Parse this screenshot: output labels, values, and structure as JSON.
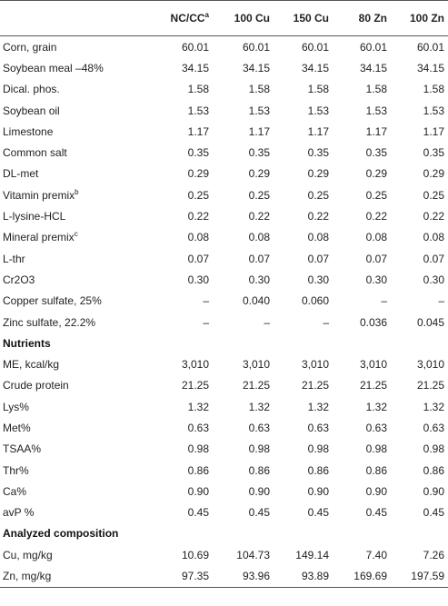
{
  "columns": [
    {
      "label": "NC/CC",
      "sup": "a"
    },
    {
      "label": "100 Cu",
      "sup": ""
    },
    {
      "label": "150 Cu",
      "sup": ""
    },
    {
      "label": "80 Zn",
      "sup": ""
    },
    {
      "label": "100 Zn",
      "sup": ""
    }
  ],
  "rows": [
    {
      "label": "Corn, grain",
      "values": [
        "60.01",
        "60.01",
        "60.01",
        "60.01",
        "60.01"
      ]
    },
    {
      "label": "Soybean meal –48%",
      "values": [
        "34.15",
        "34.15",
        "34.15",
        "34.15",
        "34.15"
      ]
    },
    {
      "label": "Dical. phos.",
      "values": [
        "1.58",
        "1.58",
        "1.58",
        "1.58",
        "1.58"
      ]
    },
    {
      "label": "Soybean oil",
      "values": [
        "1.53",
        "1.53",
        "1.53",
        "1.53",
        "1.53"
      ]
    },
    {
      "label": "Limestone",
      "values": [
        "1.17",
        "1.17",
        "1.17",
        "1.17",
        "1.17"
      ]
    },
    {
      "label": "Common salt",
      "values": [
        "0.35",
        "0.35",
        "0.35",
        "0.35",
        "0.35"
      ]
    },
    {
      "label": "DL-met",
      "values": [
        "0.29",
        "0.29",
        "0.29",
        "0.29",
        "0.29"
      ]
    },
    {
      "label": "Vitamin premix",
      "sup": "b",
      "values": [
        "0.25",
        "0.25",
        "0.25",
        "0.25",
        "0.25"
      ]
    },
    {
      "label": "L-lysine-HCL",
      "values": [
        "0.22",
        "0.22",
        "0.22",
        "0.22",
        "0.22"
      ]
    },
    {
      "label": "Mineral premix",
      "sup": "c",
      "values": [
        "0.08",
        "0.08",
        "0.08",
        "0.08",
        "0.08"
      ]
    },
    {
      "label": "L-thr",
      "values": [
        "0.07",
        "0.07",
        "0.07",
        "0.07",
        "0.07"
      ]
    },
    {
      "label": "Cr2O3",
      "values": [
        "0.30",
        "0.30",
        "0.30",
        "0.30",
        "0.30"
      ]
    },
    {
      "label": "Copper sulfate, 25%",
      "values": [
        "–",
        "0.040",
        "0.060",
        "–",
        "–"
      ]
    },
    {
      "label": "Zinc sulfate, 22.2%",
      "values": [
        "–",
        "–",
        "–",
        "0.036",
        "0.045"
      ]
    },
    {
      "section": true,
      "label": "Nutrients"
    },
    {
      "label": "ME, kcal/kg",
      "values": [
        "3,010",
        "3,010",
        "3,010",
        "3,010",
        "3,010"
      ]
    },
    {
      "label": "Crude protein",
      "values": [
        "21.25",
        "21.25",
        "21.25",
        "21.25",
        "21.25"
      ]
    },
    {
      "label": "Lys%",
      "values": [
        "1.32",
        "1.32",
        "1.32",
        "1.32",
        "1.32"
      ]
    },
    {
      "label": "Met%",
      "values": [
        "0.63",
        "0.63",
        "0.63",
        "0.63",
        "0.63"
      ]
    },
    {
      "label": "TSAA%",
      "values": [
        "0.98",
        "0.98",
        "0.98",
        "0.98",
        "0.98"
      ]
    },
    {
      "label": "Thr%",
      "values": [
        "0.86",
        "0.86",
        "0.86",
        "0.86",
        "0.86"
      ]
    },
    {
      "label": "Ca%",
      "values": [
        "0.90",
        "0.90",
        "0.90",
        "0.90",
        "0.90"
      ]
    },
    {
      "label": "avP %",
      "values": [
        "0.45",
        "0.45",
        "0.45",
        "0.45",
        "0.45"
      ]
    },
    {
      "section": true,
      "label": "Analyzed composition"
    },
    {
      "label": "Cu, mg/kg",
      "values": [
        "10.69",
        "104.73",
        "149.14",
        "7.40",
        "7.26"
      ]
    },
    {
      "label": "Zn, mg/kg",
      "values": [
        "97.35",
        "93.96",
        "93.89",
        "169.69",
        "197.59"
      ]
    }
  ]
}
